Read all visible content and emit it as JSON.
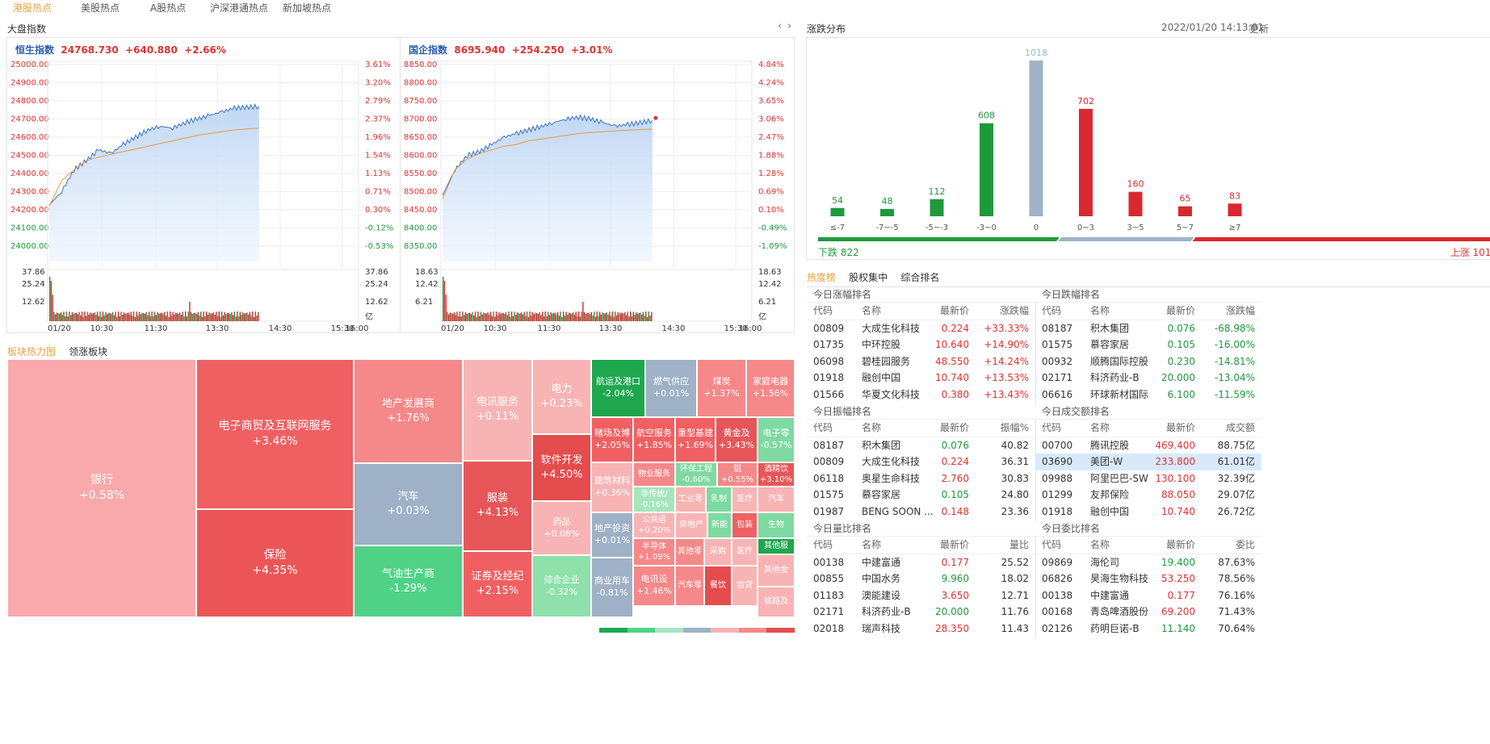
{
  "topnav": [
    {
      "label": "港股热点",
      "active": true
    },
    {
      "label": "美股热点",
      "active": false
    },
    {
      "label": "A股热点",
      "active": false
    },
    {
      "label": "沪深港通热点",
      "active": false
    },
    {
      "label": "新加坡热点",
      "active": false
    }
  ],
  "market": {
    "title": "大盘指数",
    "hsi": {
      "name": "恒生指数",
      "value": "24768.730",
      "change": "+640.880",
      "pct": "+2.66%",
      "y_ticks": [
        "25000.00",
        "24900.00",
        "24800.00",
        "24700.00",
        "24600.00",
        "24500.00",
        "24400.00",
        "24300.00",
        "24200.00",
        "24100.00",
        "24000.00"
      ],
      "pct_ticks": [
        "3.61%",
        "3.20%",
        "2.79%",
        "2.37%",
        "1.96%",
        "1.54%",
        "1.13%",
        "0.71%",
        "0.30%",
        "-0.12%",
        "-0.53%"
      ],
      "vol_ticks": [
        "37.86",
        "25.24",
        "12.62"
      ],
      "vol_unit": "亿",
      "times": [
        "01/20",
        "10:30",
        "11:30",
        "13:30",
        "14:30",
        "15:30",
        "16:00"
      ],
      "ylim": [
        24000,
        25000
      ],
      "price": [
        24225,
        24300,
        24420,
        24470,
        24530,
        24510,
        24560,
        24600,
        24640,
        24660,
        24650,
        24680,
        24700,
        24720,
        24740,
        24760,
        24765,
        24768.73
      ],
      "avg": [
        24220,
        24360,
        24420,
        24470,
        24490,
        24505,
        24520,
        24535,
        24550,
        24565,
        24580,
        24595,
        24610,
        24620,
        24630,
        24640,
        24645,
        24650
      ]
    },
    "hscei": {
      "name": "国企指数",
      "value": "8695.940",
      "change": "+254.250",
      "pct": "+3.01%",
      "y_ticks": [
        "8850.00",
        "8800.00",
        "8750.00",
        "8700.00",
        "8650.00",
        "8600.00",
        "8550.00",
        "8500.00",
        "8450.00",
        "8400.00",
        "8350.00"
      ],
      "pct_ticks": [
        "4.84%",
        "4.24%",
        "3.65%",
        "3.06%",
        "2.47%",
        "1.88%",
        "1.28%",
        "0.69%",
        "0.10%",
        "-0.49%",
        "-1.09%"
      ],
      "vol_ticks": [
        "18.63",
        "12.42",
        "6.21"
      ],
      "vol_unit": "亿",
      "times": [
        "01/20",
        "10:30",
        "11:30",
        "13:30",
        "14:30",
        "15:30",
        "16:00"
      ],
      "ylim": [
        8350,
        8850
      ],
      "price": [
        8490,
        8560,
        8600,
        8610,
        8630,
        8650,
        8660,
        8670,
        8680,
        8690,
        8700,
        8705,
        8700,
        8690,
        8680,
        8685,
        8690,
        8695.94
      ],
      "avg": [
        8480,
        8560,
        8590,
        8605,
        8615,
        8625,
        8630,
        8640,
        8645,
        8650,
        8655,
        8660,
        8663,
        8665,
        8667,
        8669,
        8671,
        8672
      ]
    }
  },
  "distribution": {
    "title": "涨跌分布",
    "timestamp": "2022/01/20 14:13:01",
    "refresh_label": "更新",
    "down_label": "下跌 822",
    "up_label": "上涨 1010",
    "colors": {
      "down": "#1e9a3c",
      "flat": "#9fb3c8",
      "up": "#d9282f"
    }
  },
  "chart_data": {
    "type": "bar",
    "categories": [
      "≤-7",
      "-7~-5",
      "-5~-3",
      "-3~0",
      "0",
      "0~3",
      "3~5",
      "5~7",
      "≥7"
    ],
    "values": [
      54,
      48,
      112,
      608,
      1018,
      702,
      160,
      65,
      83
    ],
    "title": "涨跌分布"
  },
  "hot": {
    "tabs": [
      {
        "label": "热度榜",
        "active": true
      },
      {
        "label": "股权集中",
        "active": false
      },
      {
        "label": "综合排名",
        "active": false
      }
    ],
    "tables": [
      {
        "title": "今日涨幅排名",
        "headers": [
          "代码",
          "名称",
          "最新价",
          "涨跌幅"
        ],
        "rows": [
          [
            "00809",
            "大成生化科技",
            "0.224",
            "+33.33%"
          ],
          [
            "01735",
            "中环控股",
            "10.640",
            "+14.90%"
          ],
          [
            "06098",
            "碧桂园服务",
            "48.550",
            "+14.24%"
          ],
          [
            "01918",
            "融创中国",
            "10.740",
            "+13.53%"
          ],
          [
            "01566",
            "华夏文化科技",
            "0.380",
            "+13.43%"
          ]
        ],
        "colors": [
          "red",
          "red",
          "red",
          "red",
          "red"
        ]
      },
      {
        "title": "今日跌幅排名",
        "headers": [
          "代码",
          "名称",
          "最新价",
          "涨跌幅"
        ],
        "rows": [
          [
            "08187",
            "积木集团",
            "0.076",
            "-68.98%"
          ],
          [
            "01575",
            "慕容家居",
            "0.105",
            "-16.00%"
          ],
          [
            "00932",
            "顺腾国际控股",
            "0.230",
            "-14.81%"
          ],
          [
            "02171",
            "科济药业-B",
            "20.000",
            "-13.04%"
          ],
          [
            "06616",
            "环球新材国际",
            "6.100",
            "-11.59%"
          ]
        ],
        "colors": [
          "green",
          "green",
          "green",
          "green",
          "green"
        ]
      },
      {
        "title": "今日振幅排名",
        "headers": [
          "代码",
          "名称",
          "最新价",
          "振幅%"
        ],
        "rows": [
          [
            "08187",
            "积木集团",
            "0.076",
            "40.82"
          ],
          [
            "00809",
            "大成生化科技",
            "0.224",
            "36.31"
          ],
          [
            "06118",
            "奥星生命科技",
            "2.760",
            "30.83"
          ],
          [
            "01575",
            "慕容家居",
            "0.105",
            "24.80"
          ],
          [
            "01987",
            "BENG SOON ...",
            "0.148",
            "23.36"
          ]
        ],
        "colors": [
          "green",
          "red",
          "red",
          "green",
          "red"
        ]
      },
      {
        "title": "今日成交额排名",
        "headers": [
          "代码",
          "名称",
          "最新价",
          "成交额"
        ],
        "rows": [
          [
            "00700",
            "腾讯控股",
            "469.400",
            "88.75亿"
          ],
          [
            "03690",
            "美团-W",
            "233.800",
            "61.01亿"
          ],
          [
            "09988",
            "阿里巴巴-SW",
            "130.100",
            "32.39亿"
          ],
          [
            "01299",
            "友邦保险",
            "88.050",
            "29.07亿"
          ],
          [
            "01918",
            "融创中国",
            "10.740",
            "26.72亿"
          ]
        ],
        "colors": [
          "red",
          "red",
          "red",
          "red",
          "red"
        ]
      },
      {
        "title": "今日量比排名",
        "headers": [
          "代码",
          "名称",
          "最新价",
          "量比"
        ],
        "rows": [
          [
            "00138",
            "中建富通",
            "0.177",
            "25.52"
          ],
          [
            "00855",
            "中国水务",
            "9.960",
            "18.02"
          ],
          [
            "01183",
            "澳能建设",
            "3.650",
            "12.71"
          ],
          [
            "02171",
            "科济药业-B",
            "20.000",
            "11.76"
          ],
          [
            "02018",
            "瑞声科技",
            "28.350",
            "11.43"
          ]
        ],
        "colors": [
          "red",
          "green",
          "red",
          "green",
          "red"
        ]
      },
      {
        "title": "今日委比排名",
        "headers": [
          "代码",
          "名称",
          "最新价",
          "委比"
        ],
        "rows": [
          [
            "09869",
            "海伦司",
            "19.400",
            "87.63%"
          ],
          [
            "06826",
            "昊海生物科技",
            "53.250",
            "78.56%"
          ],
          [
            "00138",
            "中建富通",
            "0.177",
            "76.16%"
          ],
          [
            "00168",
            "青岛啤酒股份",
            "69.200",
            "71.43%"
          ],
          [
            "02126",
            "药明巨诺-B",
            "11.140",
            "70.64%"
          ]
        ],
        "colors": [
          "green",
          "red",
          "red",
          "red",
          "green"
        ]
      }
    ]
  },
  "sectors": {
    "tabs": [
      {
        "label": "板块热力图",
        "active": true
      },
      {
        "label": "领涨板块",
        "active": false
      }
    ],
    "tiles": [
      {
        "name": "银行",
        "pct": "+0.58%",
        "color": "#f9a9ab"
      },
      {
        "name": "电子商贸及互联网服务",
        "pct": "+3.46%",
        "color": "#f06062"
      },
      {
        "name": "保险",
        "pct": "+4.35%",
        "color": "#ec5557"
      },
      {
        "name": "地产发展商",
        "pct": "+1.76%",
        "color": "#f58889"
      },
      {
        "name": "汽车",
        "pct": "+0.03%",
        "color": "#9eb1c6"
      },
      {
        "name": "气油生产商",
        "pct": "-1.29%",
        "color": "#4fd286"
      },
      {
        "name": "电讯服务",
        "pct": "+0.11%",
        "color": "#f8b4b5"
      },
      {
        "name": "服装",
        "pct": "+4.13%",
        "color": "#e65659"
      },
      {
        "name": "证券及经纪",
        "pct": "+2.15%",
        "color": "#f06062"
      },
      {
        "name": "电力",
        "pct": "+0.23%",
        "color": "#f8b4b5"
      },
      {
        "name": "软件开发",
        "pct": "+4.50%",
        "color": "#e44c4e"
      },
      {
        "name": "药品",
        "pct": "+0.08%",
        "color": "#f8b4b5"
      },
      {
        "name": "综合企业",
        "pct": "-0.32%",
        "color": "#8fe0ab"
      },
      {
        "name": "航运及港口",
        "pct": "-2.04%",
        "color": "#1fa74e"
      },
      {
        "name": "燃气供应",
        "pct": "+0.01%",
        "color": "#9eb1c6"
      },
      {
        "name": "煤炭",
        "pct": "+1.37%",
        "color": "#f58889"
      },
      {
        "name": "家庭电器",
        "pct": "+1.56%",
        "color": "#f58889"
      },
      {
        "name": "赌场及博",
        "pct": "+2.05%",
        "color": "#f06062"
      },
      {
        "name": "航空服务",
        "pct": "+1.85%",
        "color": "#f06062"
      },
      {
        "name": "重型基建",
        "pct": "+1.69%",
        "color": "#f06062"
      },
      {
        "name": "黄金及",
        "pct": "+3.43%",
        "color": "#e65659"
      },
      {
        "name": "电子零",
        "pct": "-0.57%",
        "color": "#7fd9a2"
      },
      {
        "name": "建筑材料",
        "pct": "+0.36%",
        "color": "#f8b4b5"
      },
      {
        "name": "物业服务",
        "pct": "",
        "color": "#f58889"
      },
      {
        "name": "环保工程",
        "pct": "-0.60%",
        "color": "#7fd9a2"
      },
      {
        "name": "铝",
        "pct": "+0.55%",
        "color": "#f58889"
      },
      {
        "name": "酒精饮",
        "pct": "+3.10%",
        "color": "#e65659"
      },
      {
        "name": "非传统/",
        "pct": "-0.16%",
        "color": "#a6e6bd"
      },
      {
        "name": "工业零",
        "pct": "",
        "color": "#f8b4b5"
      },
      {
        "name": "乳制",
        "pct": "",
        "color": "#7fd9a2"
      },
      {
        "name": "医疗",
        "pct": "",
        "color": "#f8b4b5"
      },
      {
        "name": "汽车",
        "pct": "",
        "color": "#f8b4b5"
      },
      {
        "name": "地产投资",
        "pct": "+0.01%",
        "color": "#9eb1c6"
      },
      {
        "name": "公共运",
        "pct": "+0.20%",
        "color": "#f8b4b5"
      },
      {
        "name": "房地产",
        "pct": "",
        "color": "#f8b4b5"
      },
      {
        "name": "新能",
        "pct": "",
        "color": "#7fd9a2"
      },
      {
        "name": "包装",
        "pct": "",
        "color": "#f06062"
      },
      {
        "name": "生物",
        "pct": "",
        "color": "#7fd9a2"
      },
      {
        "name": "半导体",
        "pct": "+1.09%",
        "color": "#f58889"
      },
      {
        "name": "其他零",
        "pct": "",
        "color": "#f58889"
      },
      {
        "name": "采购",
        "pct": "",
        "color": "#f8b4b5"
      },
      {
        "name": "医疗",
        "pct": "",
        "color": "#f8b4b5"
      },
      {
        "name": "其他服",
        "pct": "",
        "color": "#1fa74e"
      },
      {
        "name": "商业用车",
        "pct": "-0.81%",
        "color": "#9eb1c6"
      },
      {
        "name": "电讯设",
        "pct": "+1.46%",
        "color": "#f58889"
      },
      {
        "name": "汽车零",
        "pct": "",
        "color": "#f58889"
      },
      {
        "name": "餐饮",
        "pct": "",
        "color": "#e44c4e"
      },
      {
        "name": "信贷",
        "pct": "",
        "color": "#f8b4b5"
      },
      {
        "name": "其他金",
        "pct": "",
        "color": "#f8b4b5"
      },
      {
        "name": "铁路及",
        "pct": "",
        "color": "#f8b4b5"
      }
    ]
  }
}
